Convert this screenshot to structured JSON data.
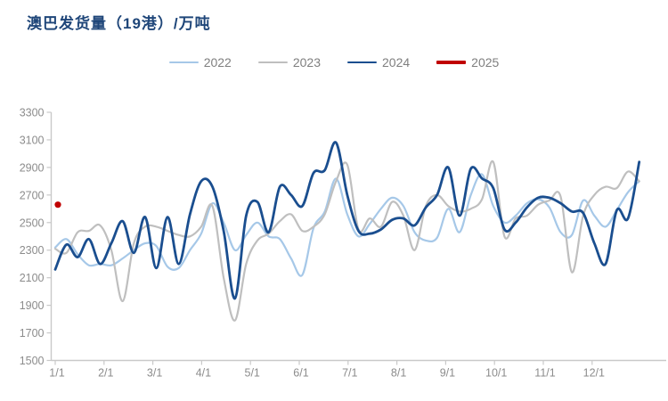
{
  "chart_data": {
    "type": "line",
    "title": "澳巴发货量（19港）/万吨",
    "title_color": "#1f4679",
    "subtitle": "",
    "grid": false,
    "legend_position": "top-center",
    "x_axis": {
      "tick_labels": [
        "1/1",
        "2/1",
        "3/1",
        "4/1",
        "5/1",
        "6/1",
        "7/1",
        "8/1",
        "9/1",
        "10/1",
        "11/1",
        "12/1"
      ],
      "note": "weekly data points, one calendar year per series"
    },
    "y_axis": {
      "min": 1500,
      "max": 3300,
      "tick_step": 200,
      "ticks": [
        3300,
        3100,
        2900,
        2700,
        2500,
        2300,
        2100,
        1900,
        1700,
        1500
      ]
    },
    "axis_color": "#c9c9c9",
    "label_color": "#8c8c8c",
    "series": [
      {
        "name": "2022",
        "color": "#a6c8e8",
        "line_width": 2.2,
        "values": [
          2320,
          2380,
          2270,
          2190,
          2200,
          2190,
          2240,
          2300,
          2350,
          2330,
          2180,
          2170,
          2300,
          2420,
          2640,
          2500,
          2300,
          2410,
          2500,
          2400,
          2380,
          2240,
          2120,
          2460,
          2580,
          2820,
          2560,
          2400,
          2490,
          2600,
          2680,
          2620,
          2430,
          2370,
          2390,
          2600,
          2430,
          2700,
          2850,
          2620,
          2500,
          2550,
          2640,
          2670,
          2610,
          2430,
          2410,
          2660,
          2550,
          2470,
          2590,
          2720,
          2800
        ]
      },
      {
        "name": "2023",
        "color": "#bfbfbf",
        "line_width": 2.2,
        "values": [
          2310,
          2280,
          2430,
          2440,
          2480,
          2300,
          1930,
          2350,
          2470,
          2470,
          2440,
          2410,
          2400,
          2470,
          2620,
          2100,
          1790,
          2200,
          2370,
          2420,
          2510,
          2560,
          2440,
          2470,
          2560,
          2800,
          2920,
          2450,
          2530,
          2470,
          2650,
          2550,
          2300,
          2620,
          2700,
          2620,
          2580,
          2600,
          2670,
          2940,
          2400,
          2530,
          2550,
          2630,
          2660,
          2690,
          2140,
          2550,
          2700,
          2760,
          2750,
          2870,
          2800
        ]
      },
      {
        "name": "2024",
        "color": "#1a4e8f",
        "line_width": 2.8,
        "values": [
          2160,
          2340,
          2250,
          2380,
          2200,
          2350,
          2510,
          2280,
          2540,
          2170,
          2540,
          2200,
          2560,
          2800,
          2760,
          2440,
          1950,
          2550,
          2650,
          2430,
          2760,
          2700,
          2620,
          2860,
          2880,
          3080,
          2700,
          2440,
          2420,
          2450,
          2520,
          2530,
          2480,
          2610,
          2700,
          2900,
          2550,
          2890,
          2820,
          2750,
          2450,
          2500,
          2610,
          2680,
          2680,
          2640,
          2580,
          2570,
          2350,
          2200,
          2590,
          2530,
          2940
        ]
      },
      {
        "name": "2025",
        "color": "#c00000",
        "line_width": 4,
        "values": [
          2630
        ]
      }
    ]
  }
}
